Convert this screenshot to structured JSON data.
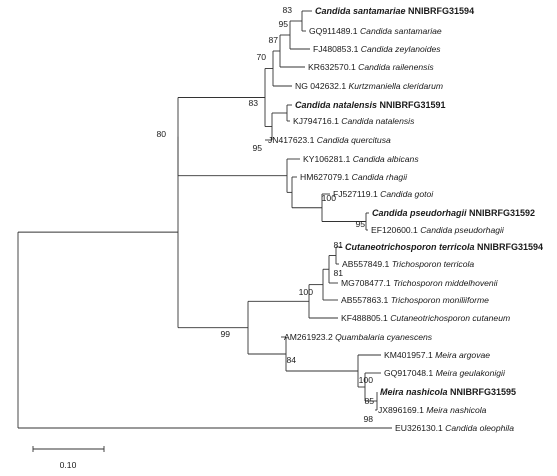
{
  "tree": {
    "leaves": [
      {
        "accession": "Candida santamariae",
        "species": "NNIBRFG31594",
        "bold": true
      },
      {
        "accession": "GQ911489.1",
        "species": "Candida santamariae",
        "bold": false
      },
      {
        "accession": "FJ480853.1",
        "species": "Candida zeylanoides",
        "bold": false
      },
      {
        "accession": "KR632570.1",
        "species": "Candida railenensis",
        "bold": false
      },
      {
        "accession": "NG 042632.1",
        "species": "Kurtzmaniella cleridarum",
        "bold": false
      },
      {
        "accession": "Candida natalensis",
        "species": "NNIBRFG31591",
        "bold": true
      },
      {
        "accession": "KJ794716.1",
        "species": "Candida natalensis",
        "bold": false
      },
      {
        "accession": "JN417623.1",
        "species": "Candida quercitusa",
        "bold": false
      },
      {
        "accession": "KY106281.1",
        "species": "Candida albicans",
        "bold": false
      },
      {
        "accession": "HM627079.1",
        "species": "Candida rhagii",
        "bold": false
      },
      {
        "accession": "FJ527119.1",
        "species": "Candida gotoi",
        "bold": false
      },
      {
        "accession": "Candida pseudorhagii",
        "species": "NNIBRFG31592",
        "bold": true
      },
      {
        "accession": "EF120600.1",
        "species": "Candida pseudorhagii",
        "bold": false
      },
      {
        "accession": "Cutaneotrichosporon terricola",
        "species": "NNIBRFG31594",
        "bold": true
      },
      {
        "accession": "AB557849.1",
        "species": "Trichosporon terricola",
        "bold": false
      },
      {
        "accession": "MG708477.1",
        "species": "Trichosporon middelhovenii",
        "bold": false
      },
      {
        "accession": "AB557863.1",
        "species": "Trichosporon moniliiforme",
        "bold": false
      },
      {
        "accession": "KF488805.1",
        "species": "Cutaneotrichosporon cutaneum",
        "bold": false
      },
      {
        "accession": "AM261923.2",
        "species": "Quambalaria cyanescens",
        "bold": false
      },
      {
        "accession": "KM401957.1",
        "species": "Meira argovae",
        "bold": false
      },
      {
        "accession": "GQ917048.1",
        "species": "Meira geulakonigii",
        "bold": false
      },
      {
        "accession": "Meira nashicola",
        "species": "NNIBRFG31595",
        "bold": true
      },
      {
        "accession": "JX896169.1",
        "species": "Meira nashicola",
        "bold": false
      },
      {
        "accession": "EU326130.1",
        "species": "Candida oleophila",
        "bold": false
      }
    ],
    "bootstrap": [
      "83",
      "95",
      "87",
      "70",
      "83",
      "95",
      "80",
      "100",
      "95",
      "81",
      "81",
      "100",
      "99",
      "84",
      "100",
      "85",
      "98"
    ],
    "scale_label": "0.10"
  }
}
